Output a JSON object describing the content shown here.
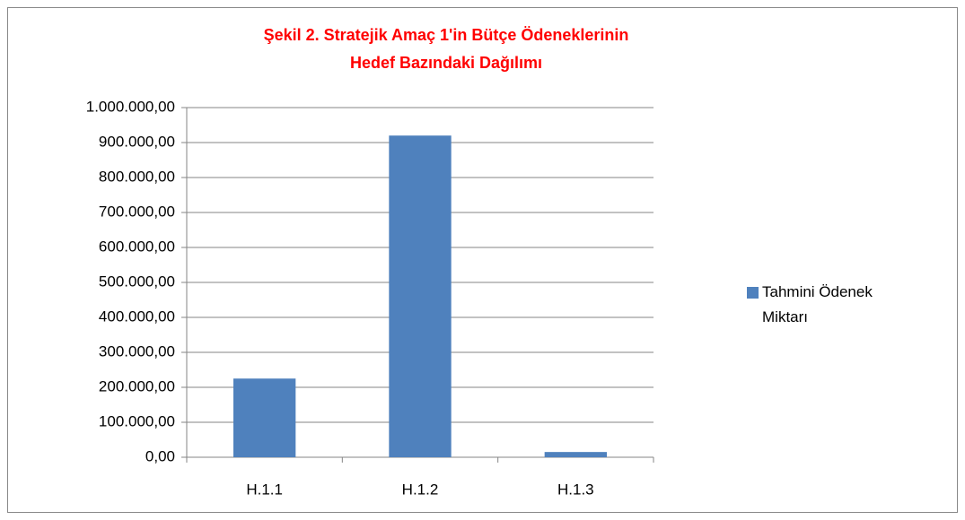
{
  "chart_data": {
    "type": "bar",
    "title": [
      "Şekil 2. Stratejik Amaç 1'in Bütçe Ödeneklerinin",
      "Hedef  Bazındaki Dağılımı"
    ],
    "categories": [
      "H.1.1",
      "H.1.2",
      "H.1.3"
    ],
    "series": [
      {
        "name": "Tahmini Ödenek Miktarı",
        "color": "#4f81bd",
        "values": [
          225000,
          920000,
          15000
        ]
      }
    ],
    "ylim": [
      0,
      1000000
    ],
    "yticks": [
      {
        "value": 0,
        "label": "0,00"
      },
      {
        "value": 100000,
        "label": "100.000,00"
      },
      {
        "value": 200000,
        "label": "200.000,00"
      },
      {
        "value": 300000,
        "label": "300.000,00"
      },
      {
        "value": 400000,
        "label": "400.000,00"
      },
      {
        "value": 500000,
        "label": "500.000,00"
      },
      {
        "value": 600000,
        "label": "600.000,00"
      },
      {
        "value": 700000,
        "label": "700.000,00"
      },
      {
        "value": 800000,
        "label": "800.000,00"
      },
      {
        "value": 900000,
        "label": "900.000,00"
      },
      {
        "value": 1000000,
        "label": "1.000.000,00"
      }
    ],
    "grid": true,
    "legend": "right"
  }
}
